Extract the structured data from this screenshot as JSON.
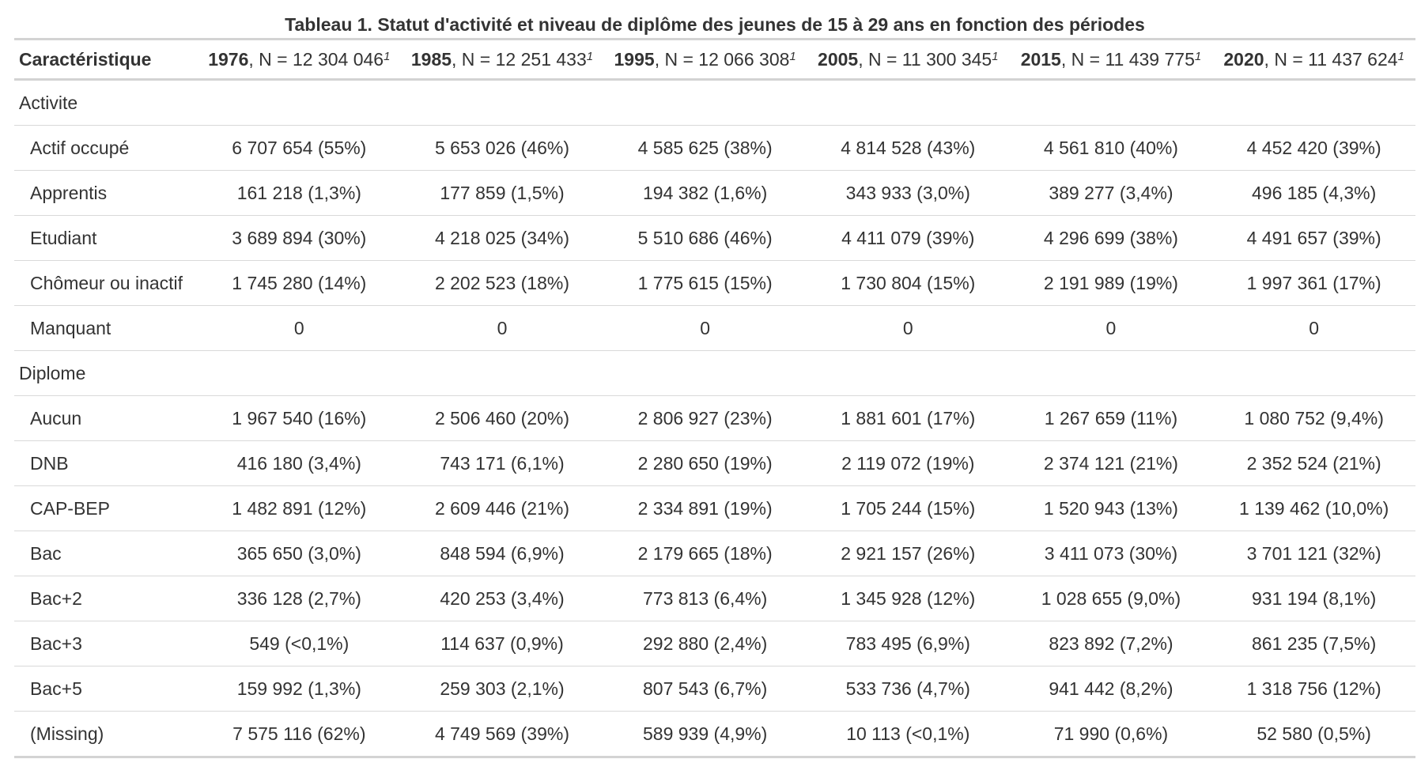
{
  "caption": "Tableau 1. Statut d'activité et niveau de diplôme des jeunes de 15 à 29 ans en fonction des périodes",
  "header": {
    "first": "Caractéristique",
    "columns": [
      {
        "year": "1976",
        "n": ", N = 12 304 046",
        "note": "1"
      },
      {
        "year": "1985",
        "n": ", N = 12 251 433",
        "note": "1"
      },
      {
        "year": "1995",
        "n": ", N = 12 066 308",
        "note": "1"
      },
      {
        "year": "2005",
        "n": ", N = 11 300 345",
        "note": "1"
      },
      {
        "year": "2015",
        "n": ", N = 11 439 775",
        "note": "1"
      },
      {
        "year": "2020",
        "n": ", N = 11 437 624",
        "note": "1"
      }
    ]
  },
  "groups": [
    {
      "title": "Activite",
      "rows": [
        {
          "label": "Actif occupé",
          "values": [
            "6 707 654 (55%)",
            "5 653 026 (46%)",
            "4 585 625 (38%)",
            "4 814 528 (43%)",
            "4 561 810 (40%)",
            "4 452 420 (39%)"
          ]
        },
        {
          "label": "Apprentis",
          "values": [
            "161 218 (1,3%)",
            "177 859 (1,5%)",
            "194 382 (1,6%)",
            "343 933 (3,0%)",
            "389 277 (3,4%)",
            "496 185 (4,3%)"
          ]
        },
        {
          "label": "Etudiant",
          "values": [
            "3 689 894 (30%)",
            "4 218 025 (34%)",
            "5 510 686 (46%)",
            "4 411 079 (39%)",
            "4 296 699 (38%)",
            "4 491 657 (39%)"
          ]
        },
        {
          "label": "Chômeur ou inactif",
          "values": [
            "1 745 280 (14%)",
            "2 202 523 (18%)",
            "1 775 615 (15%)",
            "1 730 804 (15%)",
            "2 191 989 (19%)",
            "1 997 361 (17%)"
          ]
        },
        {
          "label": "Manquant",
          "values": [
            "0",
            "0",
            "0",
            "0",
            "0",
            "0"
          ]
        }
      ]
    },
    {
      "title": "Diplome",
      "rows": [
        {
          "label": "Aucun",
          "values": [
            "1 967 540 (16%)",
            "2 506 460 (20%)",
            "2 806 927 (23%)",
            "1 881 601 (17%)",
            "1 267 659 (11%)",
            "1 080 752 (9,4%)"
          ]
        },
        {
          "label": "DNB",
          "values": [
            "416 180 (3,4%)",
            "743 171 (6,1%)",
            "2 280 650 (19%)",
            "2 119 072 (19%)",
            "2 374 121 (21%)",
            "2 352 524 (21%)"
          ]
        },
        {
          "label": "CAP-BEP",
          "values": [
            "1 482 891 (12%)",
            "2 609 446 (21%)",
            "2 334 891 (19%)",
            "1 705 244 (15%)",
            "1 520 943 (13%)",
            "1 139 462 (10,0%)"
          ]
        },
        {
          "label": "Bac",
          "values": [
            "365 650 (3,0%)",
            "848 594 (6,9%)",
            "2 179 665 (18%)",
            "2 921 157 (26%)",
            "3 411 073 (30%)",
            "3 701 121 (32%)"
          ]
        },
        {
          "label": "Bac+2",
          "values": [
            "336 128 (2,7%)",
            "420 253 (3,4%)",
            "773 813 (6,4%)",
            "1 345 928 (12%)",
            "1 028 655 (9,0%)",
            "931 194 (8,1%)"
          ]
        },
        {
          "label": "Bac+3",
          "values": [
            "549 (<0,1%)",
            "114 637 (0,9%)",
            "292 880 (2,4%)",
            "783 495 (6,9%)",
            "823 892 (7,2%)",
            "861 235 (7,5%)"
          ]
        },
        {
          "label": "Bac+5",
          "values": [
            "159 992 (1,3%)",
            "259 303 (2,1%)",
            "807 543 (6,7%)",
            "533 736 (4,7%)",
            "941 442 (8,2%)",
            "1 318 756 (12%)"
          ]
        },
        {
          "label": "(Missing)",
          "values": [
            "7 575 116 (62%)",
            "4 749 569 (39%)",
            "589 939 (4,9%)",
            "10 113 (<0,1%)",
            "71 990 (0,6%)",
            "52 580 (0,5%)"
          ]
        }
      ]
    }
  ]
}
